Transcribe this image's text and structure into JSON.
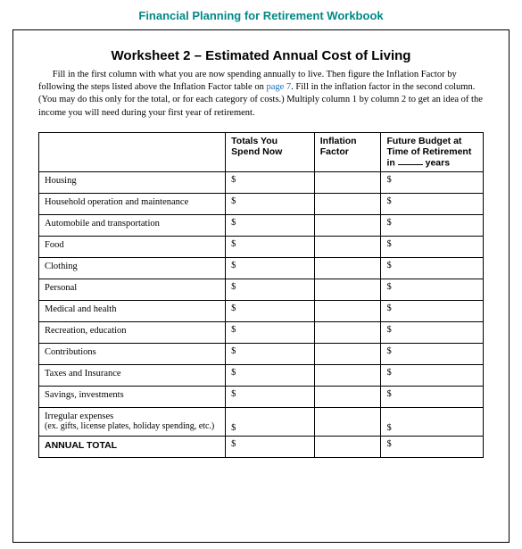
{
  "header": {
    "title": "Financial Planning for Retirement Workbook",
    "color": "#008a87"
  },
  "worksheet": {
    "title": "Worksheet 2 – Estimated Annual Cost of Living",
    "instructions_pre": "Fill in the first column with what you are now spending annually to live. Then figure the Inflation Factor by following the steps listed above the Inflation Factor table on ",
    "instructions_link": "page 7",
    "instructions_post": ". Fill in the inflation factor in the second column. (You may do this only for the total, or for each category of costs.) Multiply column 1 by column 2 to get an idea of the income you will need during your first year of retirement."
  },
  "table": {
    "columns": {
      "c0": "",
      "c1": "Totals You Spend Now",
      "c2": "Inflation Factor",
      "c3a": "Future Budget at Time of Retirement",
      "c3b": "in",
      "c3c": "years"
    },
    "currency": "$",
    "rows": [
      {
        "label": "Housing"
      },
      {
        "label": "Household operation and maintenance"
      },
      {
        "label": "Automobile and transportation"
      },
      {
        "label": "Food"
      },
      {
        "label": "Clothing"
      },
      {
        "label": "Personal"
      },
      {
        "label": "Medical and health"
      },
      {
        "label": "Recreation, education"
      },
      {
        "label": "Contributions"
      },
      {
        "label": "Taxes and Insurance"
      },
      {
        "label": "Savings, investments"
      }
    ],
    "irregular": {
      "label": "Irregular expenses",
      "sub": "(ex. gifts, license plates, holiday spending, etc.)"
    },
    "total_label": "ANNUAL TOTAL"
  },
  "style": {
    "border_color": "#000000",
    "link_color": "#1a6fb3",
    "body_font": "Georgia",
    "heading_font": "Arial",
    "base_fontsize": 10.5
  }
}
